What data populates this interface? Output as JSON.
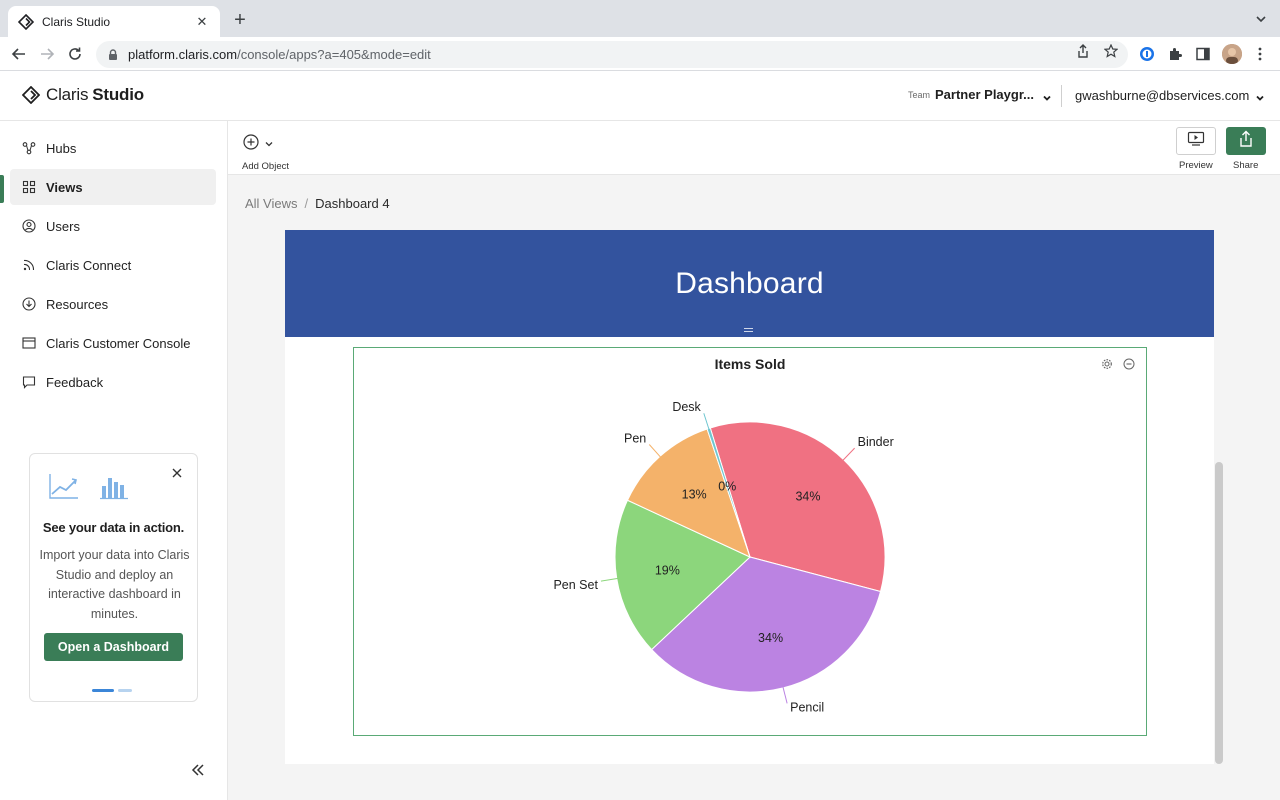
{
  "browser": {
    "tab_title": "Claris Studio",
    "url_host": "platform.claris.com",
    "url_path": "/console/apps?a=405&mode=edit"
  },
  "header": {
    "brand_claris": "Claris",
    "brand_studio": "Studio",
    "team_label": "Team",
    "team_name": "Partner Playgr...",
    "user_email": "gwashburne@dbservices.com"
  },
  "sidebar": {
    "items": [
      {
        "label": "Hubs",
        "icon": "hubs-icon"
      },
      {
        "label": "Views",
        "icon": "grid-icon",
        "active": true
      },
      {
        "label": "Users",
        "icon": "user-circle-icon"
      },
      {
        "label": "Claris Connect",
        "icon": "rss-icon"
      },
      {
        "label": "Resources",
        "icon": "download-circle-icon"
      },
      {
        "label": "Claris Customer Console",
        "icon": "window-icon"
      },
      {
        "label": "Feedback",
        "icon": "speech-bubble-icon"
      }
    ],
    "promo": {
      "title": "See your data in action.",
      "body": "Import your data into Claris Studio and deploy an interactive dashboard in minutes.",
      "button": "Open a Dashboard"
    }
  },
  "toolbar": {
    "add_object": "Add Object",
    "preview": "Preview",
    "share": "Share"
  },
  "breadcrumb": {
    "root": "All Views",
    "separator": "/",
    "current": "Dashboard 4"
  },
  "dashboard": {
    "banner_title": "Dashboard"
  },
  "chart_data": {
    "type": "pie",
    "title": "Items Sold",
    "slices": [
      {
        "label": "Binder",
        "pct_label": "34%",
        "value": 34,
        "color": "#f07182"
      },
      {
        "label": "Pencil",
        "pct_label": "34%",
        "value": 34,
        "color": "#bb83e2"
      },
      {
        "label": "Pen Set",
        "pct_label": "19%",
        "value": 19,
        "color": "#8cd67c"
      },
      {
        "label": "Pen",
        "pct_label": "13%",
        "value": 13,
        "color": "#f4b26a"
      },
      {
        "label": "Desk",
        "pct_label": "0%",
        "value": 0.4,
        "color": "#6fc6d0"
      }
    ],
    "legend": "none"
  },
  "colors": {
    "accent": "#3a7d57",
    "banner": "#33539e"
  }
}
